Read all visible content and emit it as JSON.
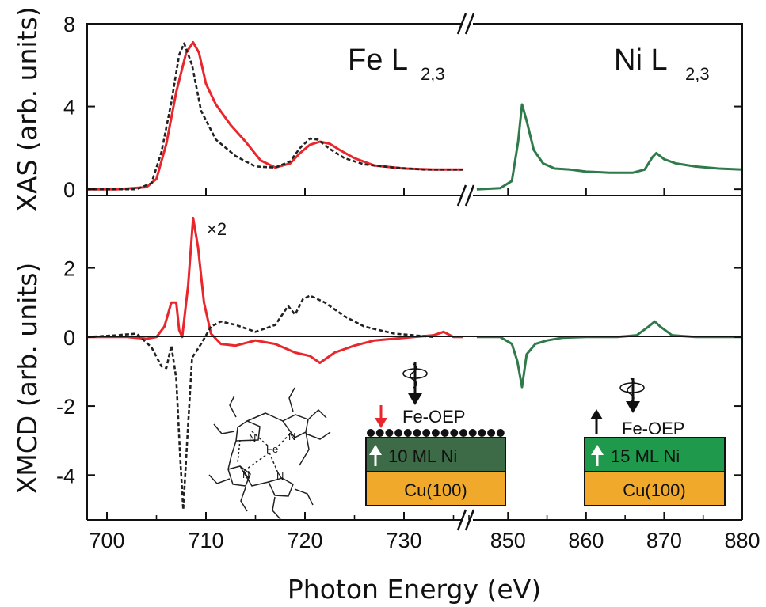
{
  "chart_data": {
    "type": "line",
    "xlabel": "Photon Energy (eV)",
    "x_segments": [
      {
        "range": [
          698,
          736
        ],
        "ticks": [
          700,
          710,
          720,
          730
        ]
      },
      {
        "range": [
          845,
          880
        ],
        "ticks": [
          850,
          860,
          870,
          880
        ]
      }
    ],
    "panels": [
      {
        "id": "xas",
        "ylabel": "XAS (arb. units)",
        "ylim": [
          -0.3,
          8
        ],
        "yticks": [
          0,
          4,
          8
        ],
        "labels": [
          {
            "main": "Fe L",
            "sub": "2,3"
          },
          {
            "main": "Ni L",
            "sub": "2,3"
          }
        ],
        "series": [
          {
            "color": "#e8262b",
            "dashed": false,
            "points": [
              [
                698,
                0
              ],
              [
                701,
                0
              ],
              [
                704,
                0.1
              ],
              [
                705,
                0.5
              ],
              [
                706,
                2.2
              ],
              [
                707,
                4.7
              ],
              [
                708,
                6.6
              ],
              [
                708.7,
                7.1
              ],
              [
                709.3,
                6.6
              ],
              [
                710,
                5.1
              ],
              [
                711,
                4.1
              ],
              [
                712.5,
                3.1
              ],
              [
                714,
                2.3
              ],
              [
                715.5,
                1.4
              ],
              [
                717,
                1.05
              ],
              [
                718.5,
                1.25
              ],
              [
                719.5,
                1.75
              ],
              [
                720.5,
                2.15
              ],
              [
                721.5,
                2.3
              ],
              [
                722.5,
                2.2
              ],
              [
                723.5,
                1.9
              ],
              [
                725,
                1.5
              ],
              [
                727,
                1.15
              ],
              [
                730,
                1.0
              ],
              [
                733,
                0.95
              ],
              [
                736,
                0.95
              ]
            ]
          },
          {
            "color": "#222222",
            "dashed": true,
            "points": [
              [
                698,
                0
              ],
              [
                703,
                0
              ],
              [
                704.5,
                0.3
              ],
              [
                705.5,
                1.8
              ],
              [
                706.5,
                4.2
              ],
              [
                707.3,
                6.5
              ],
              [
                707.8,
                7.05
              ],
              [
                708.6,
                6.0
              ],
              [
                709.5,
                3.8
              ],
              [
                711,
                2.4
              ],
              [
                713,
                1.6
              ],
              [
                715,
                1.1
              ],
              [
                717,
                1.05
              ],
              [
                718.5,
                1.35
              ],
              [
                719.5,
                2.0
              ],
              [
                720.5,
                2.45
              ],
              [
                721.3,
                2.4
              ],
              [
                722.5,
                1.95
              ],
              [
                724,
                1.5
              ],
              [
                726,
                1.2
              ],
              [
                729,
                1.05
              ],
              [
                732,
                0.95
              ],
              [
                736,
                0.95
              ]
            ]
          },
          {
            "color": "#2f7a4a",
            "dashed": false,
            "points": [
              [
                846,
                0
              ],
              [
                849,
                0.05
              ],
              [
                850.5,
                0.4
              ],
              [
                851.3,
                2.3
              ],
              [
                851.8,
                4.1
              ],
              [
                852.4,
                3.3
              ],
              [
                853.3,
                1.9
              ],
              [
                854.5,
                1.25
              ],
              [
                856,
                1.0
              ],
              [
                858,
                0.95
              ],
              [
                860,
                0.85
              ],
              [
                863,
                0.8
              ],
              [
                866,
                0.8
              ],
              [
                867.5,
                0.95
              ],
              [
                868.5,
                1.55
              ],
              [
                869,
                1.75
              ],
              [
                870,
                1.45
              ],
              [
                871.5,
                1.25
              ],
              [
                874,
                1.1
              ],
              [
                877,
                1.0
              ],
              [
                880,
                0.95
              ]
            ]
          }
        ]
      },
      {
        "id": "xmcd",
        "ylabel": "XMCD (arb. units)",
        "ylim": [
          -5.3,
          4.1
        ],
        "yticks": [
          -4,
          -2,
          0,
          2
        ],
        "annotation": "×2",
        "series": [
          {
            "color": "#e8262b",
            "dashed": false,
            "points": [
              [
                698,
                0
              ],
              [
                702,
                0
              ],
              [
                704,
                -0.05
              ],
              [
                705,
                0
              ],
              [
                705.8,
                0.3
              ],
              [
                706.5,
                1.0
              ],
              [
                707,
                1.0
              ],
              [
                707.3,
                0.2
              ],
              [
                707.6,
                0.0
              ],
              [
                708.2,
                1.5
              ],
              [
                708.7,
                3.45
              ],
              [
                709.2,
                2.6
              ],
              [
                709.8,
                1.0
              ],
              [
                710.5,
                0.1
              ],
              [
                711.5,
                -0.2
              ],
              [
                713,
                -0.25
              ],
              [
                715,
                -0.1
              ],
              [
                717,
                -0.2
              ],
              [
                719,
                -0.45
              ],
              [
                720.5,
                -0.55
              ],
              [
                721.5,
                -0.75
              ],
              [
                723,
                -0.45
              ],
              [
                725,
                -0.25
              ],
              [
                727,
                -0.1
              ],
              [
                729,
                -0.05
              ],
              [
                731,
                0
              ],
              [
                733,
                0.05
              ],
              [
                734,
                0.15
              ],
              [
                735,
                0
              ],
              [
                736,
                0
              ]
            ]
          },
          {
            "color": "#222222",
            "dashed": true,
            "points": [
              [
                698,
                0
              ],
              [
                701,
                0.05
              ],
              [
                703,
                0.1
              ],
              [
                704.5,
                -0.3
              ],
              [
                705.5,
                -0.85
              ],
              [
                706,
                -0.9
              ],
              [
                706.5,
                -0.25
              ],
              [
                707,
                -1.2
              ],
              [
                707.4,
                -3.5
              ],
              [
                707.7,
                -5.0
              ],
              [
                708.1,
                -3.0
              ],
              [
                708.6,
                -0.6
              ],
              [
                709.5,
                -0.2
              ],
              [
                710.5,
                0.3
              ],
              [
                711.5,
                0.45
              ],
              [
                713,
                0.35
              ],
              [
                715,
                0.15
              ],
              [
                717,
                0.35
              ],
              [
                718.3,
                0.9
              ],
              [
                719,
                0.65
              ],
              [
                719.8,
                1.1
              ],
              [
                720.5,
                1.2
              ],
              [
                722,
                1.0
              ],
              [
                724,
                0.6
              ],
              [
                726,
                0.3
              ],
              [
                729,
                0.1
              ],
              [
                731,
                0.05
              ],
              [
                733,
                0
              ]
            ]
          },
          {
            "color": "#2f7a4a",
            "dashed": false,
            "points": [
              [
                846,
                0
              ],
              [
                849,
                0
              ],
              [
                850.5,
                -0.2
              ],
              [
                851.2,
                -0.7
              ],
              [
                851.8,
                -1.45
              ],
              [
                852.4,
                -0.5
              ],
              [
                853.5,
                -0.2
              ],
              [
                855,
                -0.1
              ],
              [
                857,
                -0.02
              ],
              [
                860,
                0
              ],
              [
                864,
                0
              ],
              [
                866.5,
                0.05
              ],
              [
                868,
                0.3
              ],
              [
                868.8,
                0.45
              ],
              [
                869.5,
                0.3
              ],
              [
                871,
                0.05
              ],
              [
                874,
                0
              ],
              [
                880,
                0
              ]
            ]
          }
        ],
        "insets": {
          "left": {
            "spin_label": "Fe-OEP",
            "middle_layer": "10 ML Ni",
            "bottom_layer": "Cu(100)",
            "molecule_labels": {
              "center": "Fe",
              "nitrogen": "N"
            }
          },
          "right": {
            "spin_label": "Fe-OEP",
            "middle_layer": "15 ML Ni",
            "bottom_layer": "Cu(100)"
          }
        }
      }
    ]
  }
}
